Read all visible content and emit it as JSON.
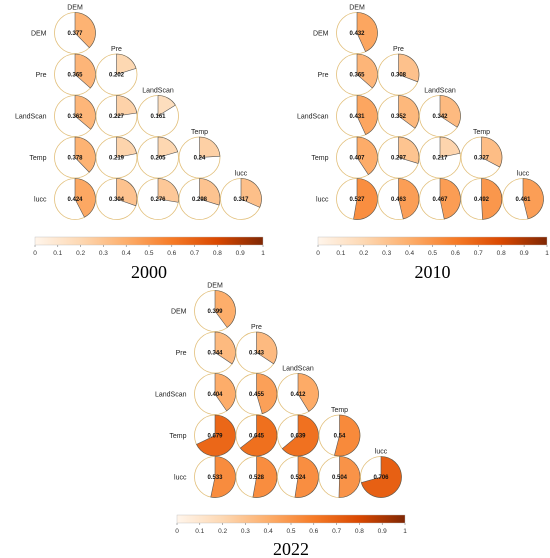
{
  "figure": {
    "colorbar_ticks": [
      "0",
      "0.1",
      "0.2",
      "0.3",
      "0.4",
      "0.5",
      "0.6",
      "0.7",
      "0.8",
      "0.9",
      "1"
    ],
    "colorscale": [
      "#fff5eb",
      "#fdd8b3",
      "#fdae6b",
      "#f67b27",
      "#d94801",
      "#7f2704"
    ],
    "circle_outline_color": "#e2bf7a",
    "wedge_stroke_color": "#555555"
  },
  "chart_data": [
    {
      "type": "heatmap",
      "title": "2000",
      "variables": [
        "DEM",
        "Pre",
        "LandScan",
        "Temp",
        "lucc"
      ],
      "cells": [
        {
          "row": "DEM",
          "col": "DEM",
          "value": 0.377,
          "label": "0.377"
        },
        {
          "row": "Pre",
          "col": "DEM",
          "value": 0.365,
          "label": "0.365"
        },
        {
          "row": "Pre",
          "col": "Pre",
          "value": 0.202,
          "label": "0.202"
        },
        {
          "row": "LandScan",
          "col": "DEM",
          "value": 0.362,
          "label": "0.362"
        },
        {
          "row": "LandScan",
          "col": "Pre",
          "value": 0.227,
          "label": "0.227"
        },
        {
          "row": "LandScan",
          "col": "LandScan",
          "value": 0.161,
          "label": "0.161"
        },
        {
          "row": "Temp",
          "col": "DEM",
          "value": 0.378,
          "label": "0.378"
        },
        {
          "row": "Temp",
          "col": "Pre",
          "value": 0.219,
          "label": "0.219"
        },
        {
          "row": "Temp",
          "col": "LandScan",
          "value": 0.205,
          "label": "0.205"
        },
        {
          "row": "Temp",
          "col": "Temp",
          "value": 0.24,
          "label": "0.24"
        },
        {
          "row": "lucc",
          "col": "DEM",
          "value": 0.424,
          "label": "0.424"
        },
        {
          "row": "lucc",
          "col": "Pre",
          "value": 0.304,
          "label": "0.304"
        },
        {
          "row": "lucc",
          "col": "LandScan",
          "value": 0.276,
          "label": "0.276"
        },
        {
          "row": "lucc",
          "col": "Temp",
          "value": 0.298,
          "label": "0.298"
        },
        {
          "row": "lucc",
          "col": "lucc",
          "value": 0.317,
          "label": "0.317"
        }
      ],
      "colorbar_range": [
        0,
        1
      ]
    },
    {
      "type": "heatmap",
      "title": "2010",
      "variables": [
        "DEM",
        "Pre",
        "LandScan",
        "Temp",
        "lucc"
      ],
      "cells": [
        {
          "row": "DEM",
          "col": "DEM",
          "value": 0.432,
          "label": "0.432"
        },
        {
          "row": "Pre",
          "col": "DEM",
          "value": 0.365,
          "label": "0.365"
        },
        {
          "row": "Pre",
          "col": "Pre",
          "value": 0.308,
          "label": "0.308"
        },
        {
          "row": "LandScan",
          "col": "DEM",
          "value": 0.431,
          "label": "0.431"
        },
        {
          "row": "LandScan",
          "col": "Pre",
          "value": 0.352,
          "label": "0.352"
        },
        {
          "row": "LandScan",
          "col": "LandScan",
          "value": 0.342,
          "label": "0.342"
        },
        {
          "row": "Temp",
          "col": "DEM",
          "value": 0.407,
          "label": "0.407"
        },
        {
          "row": "Temp",
          "col": "Pre",
          "value": 0.297,
          "label": "0.297"
        },
        {
          "row": "Temp",
          "col": "LandScan",
          "value": 0.217,
          "label": "0.217"
        },
        {
          "row": "Temp",
          "col": "Temp",
          "value": 0.327,
          "label": "0.327"
        },
        {
          "row": "lucc",
          "col": "DEM",
          "value": 0.527,
          "label": "0.527"
        },
        {
          "row": "lucc",
          "col": "Pre",
          "value": 0.463,
          "label": "0.463"
        },
        {
          "row": "lucc",
          "col": "LandScan",
          "value": 0.467,
          "label": "0.467"
        },
        {
          "row": "lucc",
          "col": "Temp",
          "value": 0.492,
          "label": "0.492"
        },
        {
          "row": "lucc",
          "col": "lucc",
          "value": 0.461,
          "label": "0.461"
        }
      ],
      "colorbar_range": [
        0,
        1
      ]
    },
    {
      "type": "heatmap",
      "title": "2022",
      "variables": [
        "DEM",
        "Pre",
        "LandScan",
        "Temp",
        "lucc"
      ],
      "cells": [
        {
          "row": "DEM",
          "col": "DEM",
          "value": 0.399,
          "label": "0.399"
        },
        {
          "row": "Pre",
          "col": "DEM",
          "value": 0.344,
          "label": "0.344"
        },
        {
          "row": "Pre",
          "col": "Pre",
          "value": 0.343,
          "label": "0.343"
        },
        {
          "row": "LandScan",
          "col": "DEM",
          "value": 0.404,
          "label": "0.404"
        },
        {
          "row": "LandScan",
          "col": "Pre",
          "value": 0.455,
          "label": "0.455"
        },
        {
          "row": "LandScan",
          "col": "LandScan",
          "value": 0.412,
          "label": "0.412"
        },
        {
          "row": "Temp",
          "col": "DEM",
          "value": 0.679,
          "label": "0.679"
        },
        {
          "row": "Temp",
          "col": "Pre",
          "value": 0.645,
          "label": "0.645"
        },
        {
          "row": "Temp",
          "col": "LandScan",
          "value": 0.639,
          "label": "0.639"
        },
        {
          "row": "Temp",
          "col": "Temp",
          "value": 0.54,
          "label": "0.54"
        },
        {
          "row": "lucc",
          "col": "DEM",
          "value": 0.533,
          "label": "0.533"
        },
        {
          "row": "lucc",
          "col": "Pre",
          "value": 0.528,
          "label": "0.528"
        },
        {
          "row": "lucc",
          "col": "LandScan",
          "value": 0.524,
          "label": "0.524"
        },
        {
          "row": "lucc",
          "col": "Temp",
          "value": 0.504,
          "label": "0.504"
        },
        {
          "row": "lucc",
          "col": "lucc",
          "value": 0.706,
          "label": "0.706"
        }
      ],
      "colorbar_range": [
        0,
        1
      ]
    }
  ]
}
